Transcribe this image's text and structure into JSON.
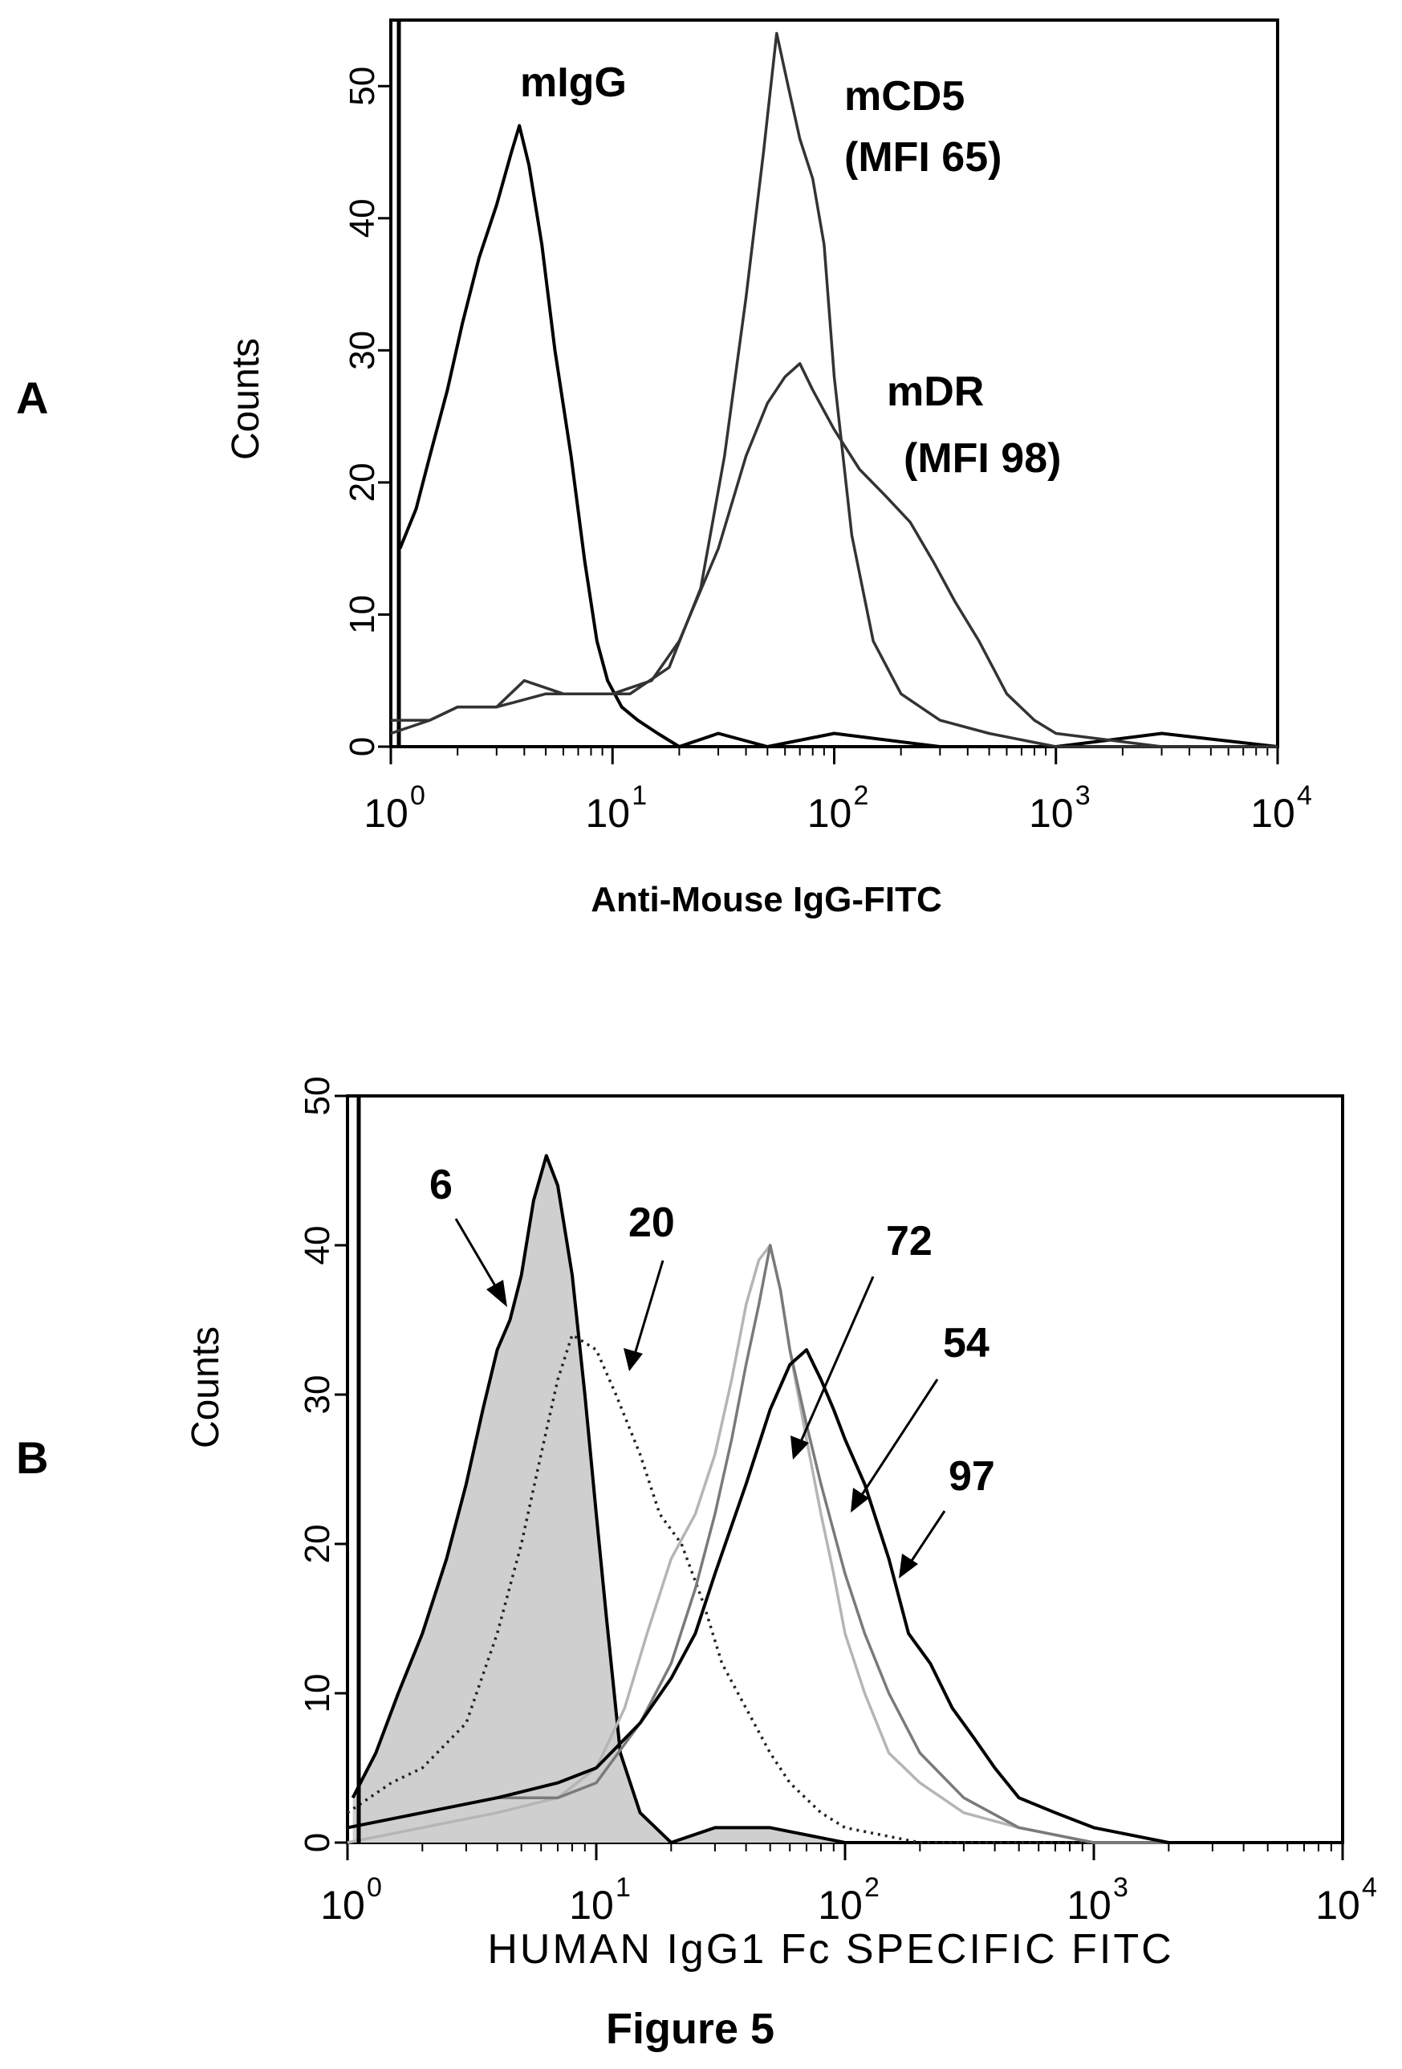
{
  "figure_caption": "Figure 5",
  "chart_data": [
    {
      "type": "line",
      "panel": "A",
      "xlabel": "Anti-Mouse IgG-FITC",
      "ylabel": "Counts",
      "x_scale": "log",
      "xlim": [
        1,
        10000
      ],
      "ylim": [
        0,
        55
      ],
      "y_ticks": [
        "0",
        "10",
        "20",
        "30",
        "40",
        "50"
      ],
      "x_ticks": [
        {
          "base": "10",
          "exp": "0",
          "value": 1
        },
        {
          "base": "10",
          "exp": "1",
          "value": 10
        },
        {
          "base": "10",
          "exp": "2",
          "value": 100
        },
        {
          "base": "10",
          "exp": "3",
          "value": 1000
        },
        {
          "base": "10",
          "exp": "4",
          "value": 10000
        }
      ],
      "annotations": [
        {
          "id": "mIgG",
          "lines": [
            "mIgG"
          ]
        },
        {
          "id": "mCD5",
          "lines": [
            "mCD5",
            "(MFI 65)"
          ]
        },
        {
          "id": "mDR",
          "lines": [
            "mDR",
            "(MFI 98)"
          ]
        }
      ],
      "series": [
        {
          "id": "mIgG",
          "color": "#000000",
          "style": "solid",
          "x": [
            1.1,
            1.3,
            1.5,
            1.8,
            2.1,
            2.5,
            3.0,
            3.5,
            3.8,
            4.2,
            4.8,
            5.5,
            6.5,
            7.5,
            8.5,
            9.5,
            11,
            13,
            16,
            20,
            30,
            50,
            100,
            300,
            1000,
            3000,
            10000
          ],
          "y": [
            15,
            18,
            22,
            27,
            32,
            37,
            41,
            45,
            47,
            44,
            38,
            30,
            22,
            14,
            8,
            5,
            3,
            2,
            1,
            0,
            1,
            0,
            1,
            0,
            0,
            1,
            0
          ]
        },
        {
          "id": "mCD5",
          "color": "#333333",
          "style": "solid",
          "x": [
            1,
            1.5,
            2,
            3,
            5,
            8,
            12,
            18,
            25,
            32,
            40,
            48,
            55,
            62,
            70,
            80,
            90,
            100,
            120,
            150,
            200,
            300,
            500,
            1000,
            3000,
            10000
          ],
          "y": [
            1,
            2,
            3,
            3,
            4,
            4,
            4,
            6,
            12,
            22,
            34,
            45,
            54,
            50,
            46,
            43,
            38,
            28,
            16,
            8,
            4,
            2,
            1,
            0,
            0,
            0
          ]
        },
        {
          "id": "mDR",
          "color": "#333333",
          "style": "solid",
          "x": [
            1,
            1.5,
            2,
            3,
            4,
            6,
            10,
            15,
            20,
            30,
            40,
            50,
            60,
            70,
            80,
            100,
            130,
            170,
            220,
            280,
            350,
            450,
            600,
            800,
            1000,
            3000,
            10000
          ],
          "y": [
            2,
            2,
            3,
            3,
            5,
            4,
            4,
            5,
            8,
            15,
            22,
            26,
            28,
            29,
            27,
            24,
            21,
            19,
            17,
            14,
            11,
            8,
            4,
            2,
            1,
            0,
            0
          ]
        }
      ]
    },
    {
      "type": "line",
      "panel": "B",
      "xlabel": "HUMAN IgG1 Fc SPECIFIC FITC",
      "ylabel": "Counts",
      "x_scale": "log",
      "xlim": [
        1,
        10000
      ],
      "ylim": [
        0,
        50
      ],
      "y_ticks": [
        "0",
        "10",
        "20",
        "30",
        "40",
        "50"
      ],
      "x_ticks": [
        {
          "base": "10",
          "exp": "0",
          "value": 1
        },
        {
          "base": "10",
          "exp": "1",
          "value": 10
        },
        {
          "base": "10",
          "exp": "2",
          "value": 100
        },
        {
          "base": "10",
          "exp": "3",
          "value": 1000
        },
        {
          "base": "10",
          "exp": "4",
          "value": 10000
        }
      ],
      "annotations": [
        {
          "id": "s6",
          "lines": [
            "6"
          ]
        },
        {
          "id": "s20",
          "lines": [
            "20"
          ]
        },
        {
          "id": "s72",
          "lines": [
            "72"
          ]
        },
        {
          "id": "s54",
          "lines": [
            "54"
          ]
        },
        {
          "id": "s97",
          "lines": [
            "97"
          ]
        }
      ],
      "series": [
        {
          "id": "s6",
          "color": "#000000",
          "style": "filled",
          "fill": "#cfcfcf",
          "x": [
            1.05,
            1.3,
            1.6,
            2,
            2.5,
            3,
            3.5,
            4,
            4.5,
            5,
            5.6,
            6.3,
            7,
            8,
            9,
            10,
            11,
            12.5,
            15,
            20,
            30,
            50,
            100,
            300,
            1000,
            10000
          ],
          "y": [
            3,
            6,
            10,
            14,
            19,
            24,
            29,
            33,
            35,
            38,
            43,
            46,
            44,
            38,
            30,
            22,
            15,
            6,
            2,
            0,
            1,
            1,
            0,
            0,
            0,
            0
          ]
        },
        {
          "id": "s20",
          "color": "#222222",
          "style": "dotted",
          "x": [
            1,
            1.5,
            2,
            3,
            4,
            5,
            6,
            7,
            8,
            10,
            12,
            15,
            18,
            22,
            27,
            32,
            40,
            50,
            60,
            80,
            100,
            200,
            1000,
            10000
          ],
          "y": [
            2,
            4,
            5,
            8,
            14,
            20,
            26,
            31,
            34,
            33,
            30,
            26,
            22,
            20,
            16,
            12,
            9,
            6,
            4,
            2,
            1,
            0,
            0,
            0
          ]
        },
        {
          "id": "s72",
          "color": "#b5b5b5",
          "style": "solid",
          "x": [
            1,
            2,
            4,
            7,
            10,
            13,
            16,
            20,
            25,
            30,
            35,
            40,
            45,
            50,
            55,
            60,
            70,
            80,
            90,
            100,
            120,
            150,
            200,
            300,
            500,
            1000,
            10000
          ],
          "y": [
            0,
            1,
            2,
            3,
            5,
            9,
            14,
            19,
            22,
            26,
            31,
            36,
            39,
            40,
            37,
            33,
            27,
            22,
            18,
            14,
            10,
            6,
            4,
            2,
            1,
            0,
            0
          ]
        },
        {
          "id": "s54",
          "color": "#7a7a7a",
          "style": "solid",
          "x": [
            1,
            2,
            4,
            7,
            10,
            15,
            20,
            25,
            30,
            35,
            40,
            45,
            50,
            55,
            60,
            70,
            80,
            100,
            120,
            150,
            200,
            300,
            500,
            1000,
            10000
          ],
          "y": [
            1,
            2,
            3,
            3,
            4,
            8,
            12,
            17,
            22,
            27,
            32,
            36,
            40,
            37,
            33,
            28,
            24,
            18,
            14,
            10,
            6,
            3,
            1,
            0,
            0
          ]
        },
        {
          "id": "s97",
          "color": "#000000",
          "style": "solid",
          "x": [
            1,
            2,
            4,
            7,
            10,
            15,
            20,
            25,
            30,
            40,
            50,
            60,
            70,
            80,
            90,
            100,
            120,
            150,
            180,
            220,
            270,
            330,
            400,
            500,
            700,
            1000,
            2000,
            10000
          ],
          "y": [
            1,
            2,
            3,
            4,
            5,
            8,
            11,
            14,
            18,
            24,
            29,
            32,
            33,
            31,
            29,
            27,
            24,
            19,
            14,
            12,
            9,
            7,
            5,
            3,
            2,
            1,
            0,
            0
          ]
        }
      ]
    }
  ]
}
